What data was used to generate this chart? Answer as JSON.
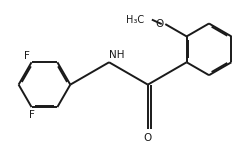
{
  "bg_color": "#ffffff",
  "line_color": "#1a1a1a",
  "line_width": 1.4,
  "fig_width": 2.5,
  "fig_height": 1.58,
  "dpi": 100,
  "labels": {
    "F_top": "F",
    "F_bottom": "F",
    "NH": "NH",
    "O_methoxy": "O",
    "methyl": "H₃C",
    "O_carbonyl": "O"
  },
  "font_size": 7.5
}
